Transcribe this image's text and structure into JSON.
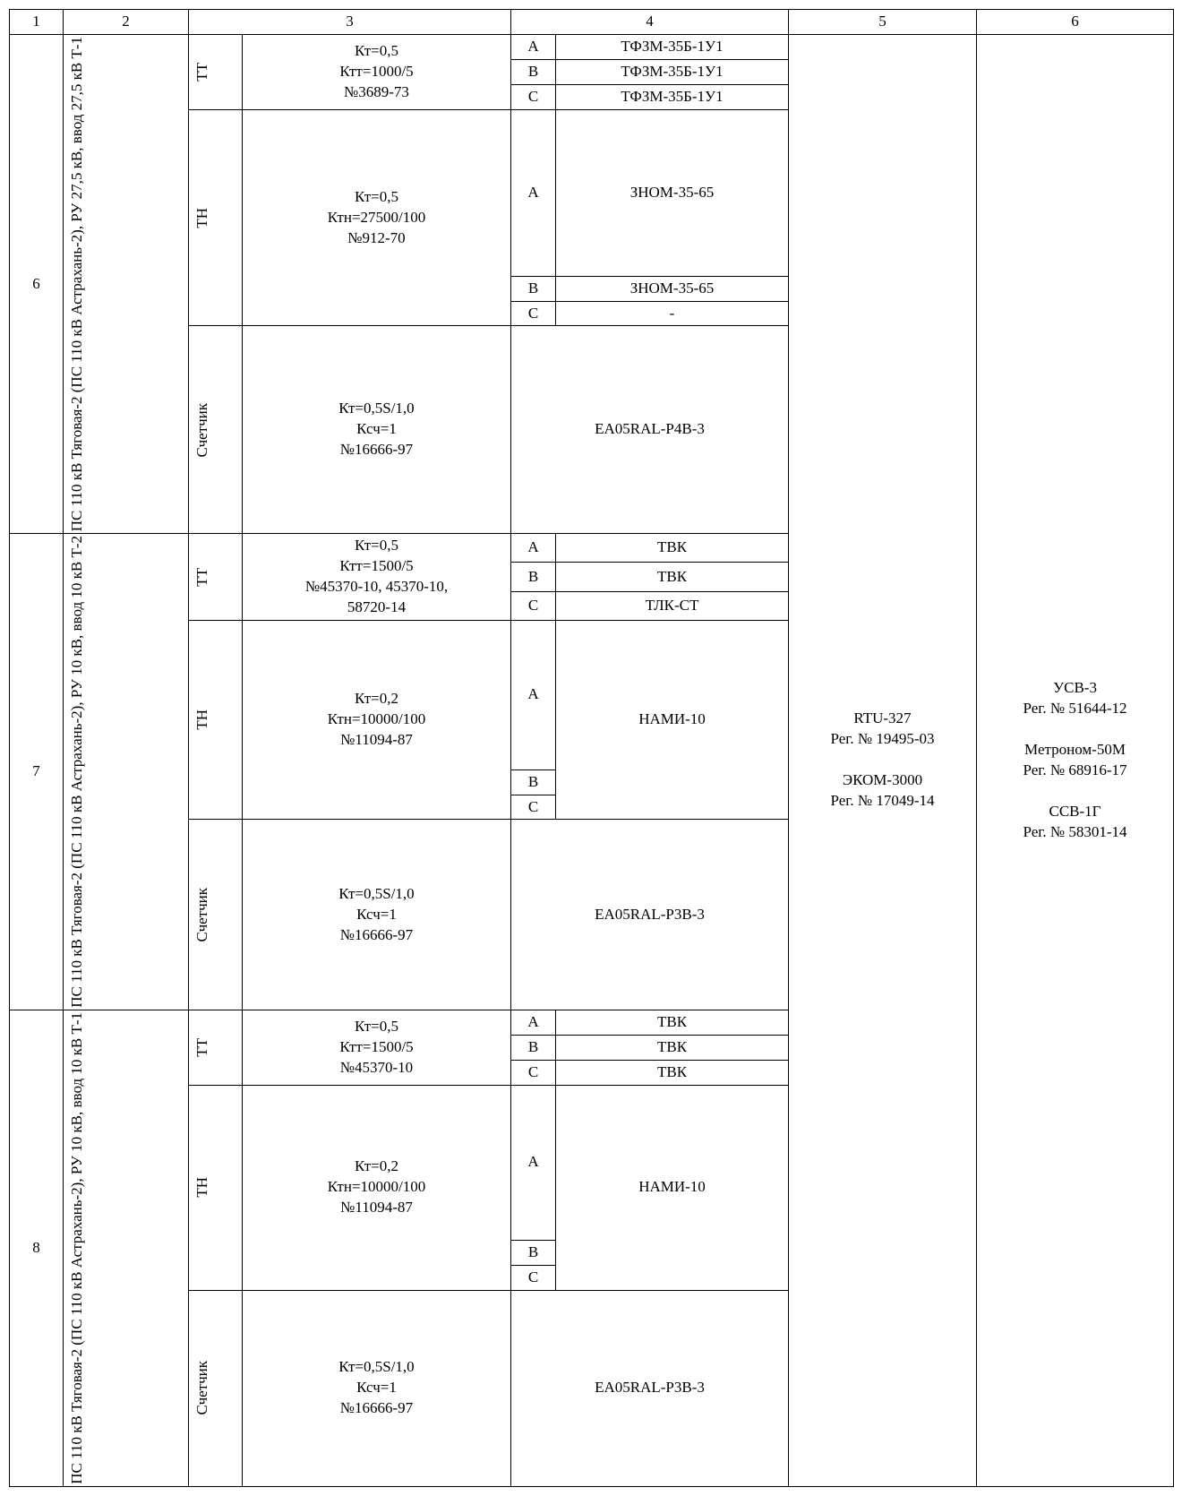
{
  "table": {
    "header": [
      "1",
      "2",
      "3",
      "4",
      "5",
      "6"
    ],
    "col5": "RTU-327\nРег. № 19495-03\n\nЭКОМ-3000\nРег. № 17049-14",
    "col6": "УСВ-3\nРег. № 51644-12\n\nМетроном-50М\nРег. № 68916-17\n\nССВ-1Г\nРег. № 58301-14",
    "rows": [
      {
        "num": "6",
        "desc": "ПС 110 кВ Тяговая-2 (ПС 110 кВ Астрахань-2), РУ 27,5 кВ, ввод 27,5 кВ Т-1",
        "tt": {
          "label": "ТТ",
          "params": "Кт=0,5\nКтт=1000/5\n№3689-73",
          "phases": [
            [
              "А",
              "ТФЗМ-35Б-1У1"
            ],
            [
              "В",
              "ТФЗМ-35Б-1У1"
            ],
            [
              "С",
              "ТФЗМ-35Б-1У1"
            ]
          ]
        },
        "tn": {
          "label": "ТН",
          "params": "Кт=0,5\nКтн=27500/100\n№912-70",
          "phases": [
            [
              "А",
              "ЗНОМ-35-65"
            ],
            [
              "В",
              "ЗНОМ-35-65"
            ],
            [
              "С",
              "-"
            ]
          ]
        },
        "meter": {
          "label": "Счетчик",
          "params": "Кт=0,5S/1,0\nКсч=1\n№16666-97",
          "model": "EA05RAL-P4B-3"
        }
      },
      {
        "num": "7",
        "desc": "ПС 110 кВ Тяговая-2 (ПС 110 кВ Астрахань-2), РУ 10 кВ, ввод 10 кВ Т-2",
        "tt": {
          "label": "ТТ",
          "params": "Кт=0,5\nКтт=1500/5\n№45370-10, 45370-10,\n58720-14",
          "phases": [
            [
              "А",
              "ТВК"
            ],
            [
              "В",
              "ТВК"
            ],
            [
              "С",
              "ТЛК-СТ"
            ]
          ]
        },
        "tn": {
          "label": "ТН",
          "params": "Кт=0,2\nКтн=10000/100\n№11094-87",
          "mergedPhases": [
            "А",
            "В",
            "С"
          ],
          "mergedModel": "НАМИ-10"
        },
        "meter": {
          "label": "Счетчик",
          "params": "Кт=0,5S/1,0\nКсч=1\n№16666-97",
          "model": "EA05RAL-P3B-3"
        }
      },
      {
        "num": "8",
        "desc": "ПС 110 кВ Тяговая-2 (ПС 110 кВ Астрахань-2), РУ 10 кВ, ввод 10 кВ Т-1",
        "tt": {
          "label": "ТТ",
          "params": "Кт=0,5\nКтт=1500/5\n№45370-10",
          "phases": [
            [
              "А",
              "ТВК"
            ],
            [
              "В",
              "ТВК"
            ],
            [
              "С",
              "ТВК"
            ]
          ]
        },
        "tn": {
          "label": "ТН",
          "params": "Кт=0,2\nКтн=10000/100\n№11094-87",
          "mergedPhases": [
            "А",
            "В",
            "С"
          ],
          "mergedModel": "НАМИ-10"
        },
        "meter": {
          "label": "Счетчик",
          "params": "Кт=0,5S/1,0\nКсч=1\n№16666-97",
          "model": "EA05RAL-P3B-3"
        }
      }
    ],
    "style": {
      "font_family": "Times New Roman",
      "font_size_pt": 13,
      "border_color": "#000000",
      "background_color": "#ffffff",
      "text_color": "#000000"
    }
  }
}
